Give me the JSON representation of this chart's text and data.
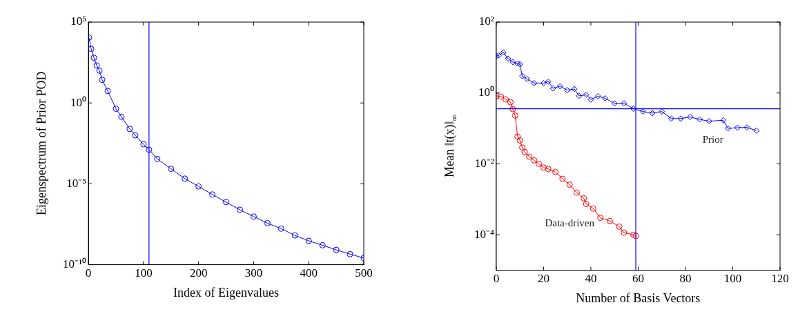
{
  "chart_data": [
    {
      "type": "line",
      "xlabel": "Index of Eigenvalues",
      "ylabel": "Eigenspectrum of Prior POD",
      "log": "y",
      "grid": false,
      "legend": false,
      "marker": "circle",
      "line_style": "solid",
      "xlim": [
        0,
        500
      ],
      "xticks": [
        0,
        100,
        200,
        300,
        400,
        500
      ],
      "ylim": [
        1e-10,
        100000
      ],
      "yticks": [
        {
          "value": 1e-10,
          "label": "10⁻¹⁰"
        },
        {
          "value": 1e-05,
          "label": "10⁻⁵"
        },
        {
          "value": 1,
          "label": "10⁰"
        },
        {
          "value": 100000,
          "label": "10⁵"
        }
      ],
      "ref_lines": [
        {
          "axis": "x",
          "value": 110,
          "color": "#0000ff"
        }
      ],
      "series": [
        {
          "color": "#0000ff",
          "x": [
            1,
            5,
            10,
            15,
            20,
            25,
            35,
            50,
            60,
            75,
            85,
            100,
            110,
            125,
            150,
            175,
            200,
            225,
            250,
            275,
            300,
            325,
            350,
            375,
            400,
            425,
            450,
            475,
            500
          ],
          "values": [
            11000,
            2200,
            630,
            210,
            100,
            27,
            5.5,
            0.44,
            0.14,
            0.025,
            0.01,
            0.0028,
            0.0013,
            0.00035,
            8.5e-05,
            2.1e-05,
            6.9e-06,
            2.2e-06,
            7.4e-07,
            2.5e-07,
            9.5e-08,
            3.7e-08,
            1.7e-08,
            6.5e-09,
            3e-09,
            1.6e-09,
            8.3e-10,
            4.5e-10,
            2.6e-10
          ]
        }
      ]
    },
    {
      "type": "line",
      "xlabel": "Number of Basis Vectors",
      "ylabel": "Mean ‖t(x)‖$_{∞}$",
      "log": "y",
      "grid": false,
      "legend": false,
      "line_style": "solid",
      "xlim": [
        0,
        120
      ],
      "xticks": [
        0,
        20,
        40,
        60,
        80,
        100,
        120
      ],
      "ylim": [
        1e-05,
        100
      ],
      "yticks": [
        {
          "value": 0.0001,
          "label": "10⁻⁴"
        },
        {
          "value": 0.01,
          "label": "10⁻²"
        },
        {
          "value": 1,
          "label": "10⁰"
        },
        {
          "value": 100,
          "label": "10²"
        }
      ],
      "ref_lines": [
        {
          "axis": "x",
          "value": 59,
          "color": "#0000ff"
        },
        {
          "axis": "y",
          "value": 0.36,
          "color": "#0000ff"
        }
      ],
      "series": [
        {
          "name": "Prior",
          "color": "#0000ff",
          "marker": "diamond",
          "x": [
            0,
            1,
            3,
            5,
            7,
            9,
            10,
            11,
            13,
            16,
            20,
            22,
            24,
            27,
            30,
            33,
            35,
            38,
            40,
            43,
            46,
            50,
            54,
            58,
            62,
            66,
            70,
            74,
            78,
            82,
            86,
            90,
            96,
            98,
            102,
            106,
            110
          ],
          "values": [
            11,
            11.5,
            14,
            9.3,
            7.4,
            6.8,
            6.5,
            3,
            2.5,
            1.9,
            1.9,
            2.1,
            1.35,
            1.55,
            1.2,
            1.3,
            0.83,
            0.89,
            0.65,
            0.81,
            0.71,
            0.51,
            0.51,
            0.36,
            0.3,
            0.27,
            0.3,
            0.19,
            0.19,
            0.21,
            0.18,
            0.16,
            0.17,
            0.1,
            0.105,
            0.107,
            0.087
          ]
        },
        {
          "name": "Data-driven",
          "color": "#ff0000",
          "marker": "circle",
          "x": [
            0,
            2,
            4,
            6,
            7,
            8,
            9,
            10,
            11,
            12,
            14,
            16,
            18,
            20,
            22,
            25,
            28,
            31,
            34,
            37,
            38,
            41,
            44,
            48,
            52,
            54,
            58,
            59
          ],
          "values": [
            0.83,
            0.79,
            0.66,
            0.55,
            0.35,
            0.23,
            0.059,
            0.046,
            0.029,
            0.022,
            0.016,
            0.0126,
            0.01,
            0.0079,
            0.0072,
            0.0059,
            0.0038,
            0.0026,
            0.00155,
            0.00107,
            0.00074,
            0.00055,
            0.0003,
            0.000245,
            0.00017,
            0.000115,
            0.0001,
            9.3e-05
          ]
        }
      ]
    }
  ]
}
